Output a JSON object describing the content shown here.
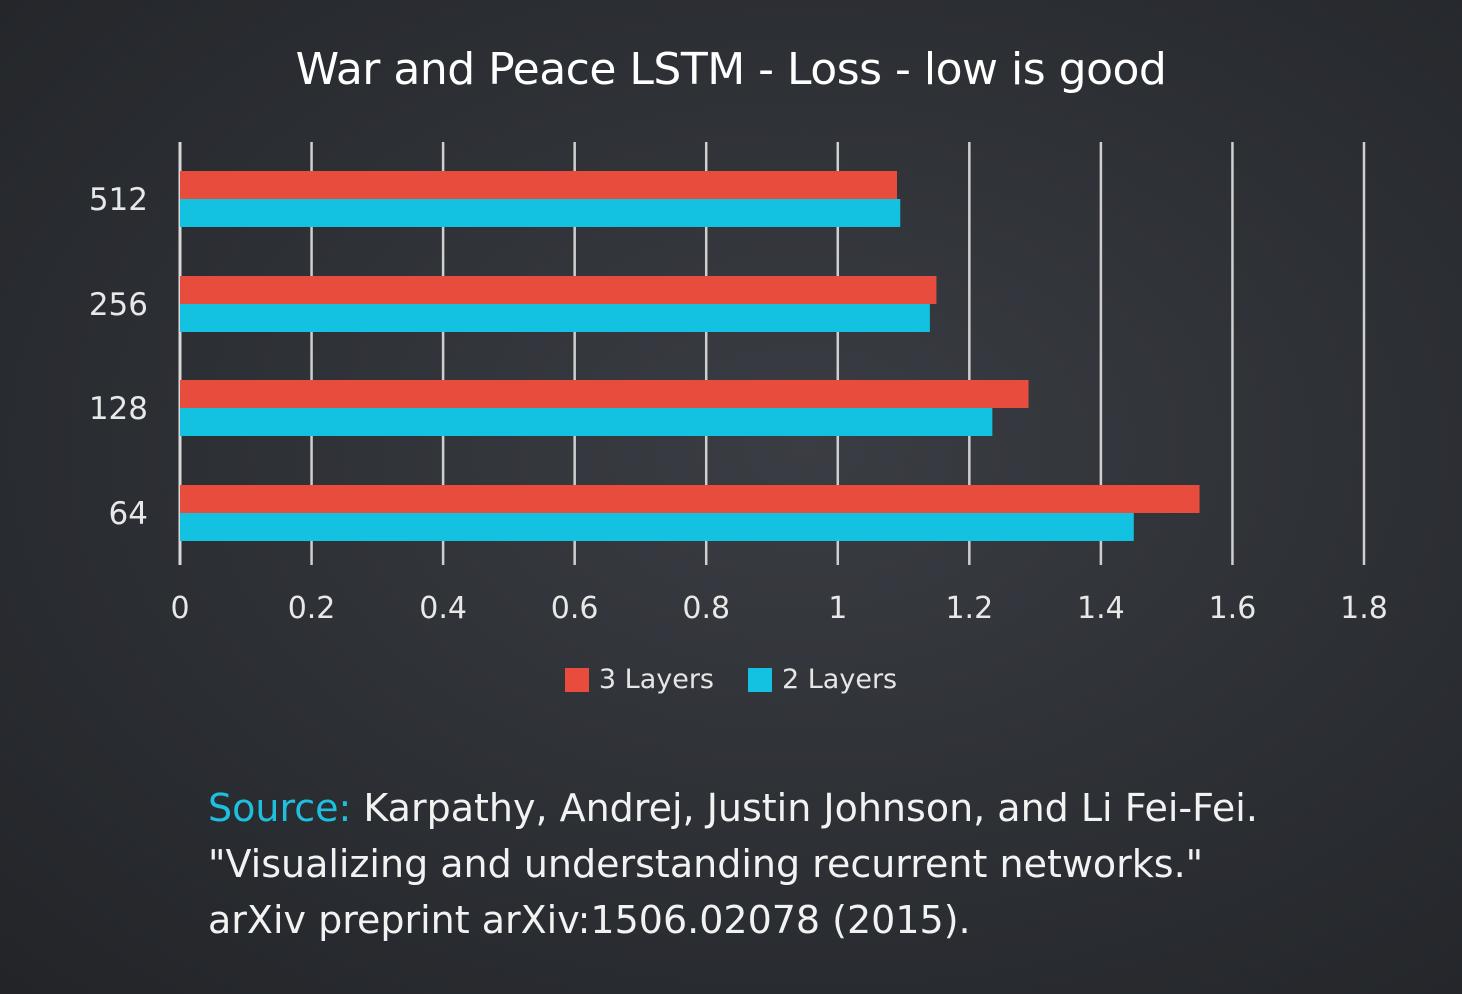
{
  "chart_data": {
    "type": "bar",
    "orientation": "horizontal",
    "title": "War and Peace LSTM - Loss - low is good",
    "categories": [
      "512",
      "256",
      "128",
      "64"
    ],
    "series": [
      {
        "name": "3 Layers",
        "color": "#e84c3d",
        "values": [
          1.09,
          1.15,
          1.29,
          1.55
        ]
      },
      {
        "name": "2 Layers",
        "color": "#12c2e0",
        "values": [
          1.095,
          1.14,
          1.235,
          1.45
        ]
      }
    ],
    "xlim": [
      0,
      1.8
    ],
    "xticks": [
      "0",
      "0.2",
      "0.4",
      "0.6",
      "0.8",
      "1",
      "1.2",
      "1.4",
      "1.6",
      "1.8"
    ],
    "grid": "vertical",
    "legend_position": "bottom-center"
  },
  "citation": {
    "label": "Source:",
    "line1": " Karpathy, Andrej, Justin Johnson, and Li Fei-Fei.",
    "line2": "\"Visualizing and understanding recurrent networks.\"",
    "line3": "arXiv preprint arXiv:1506.02078 (2015)."
  }
}
